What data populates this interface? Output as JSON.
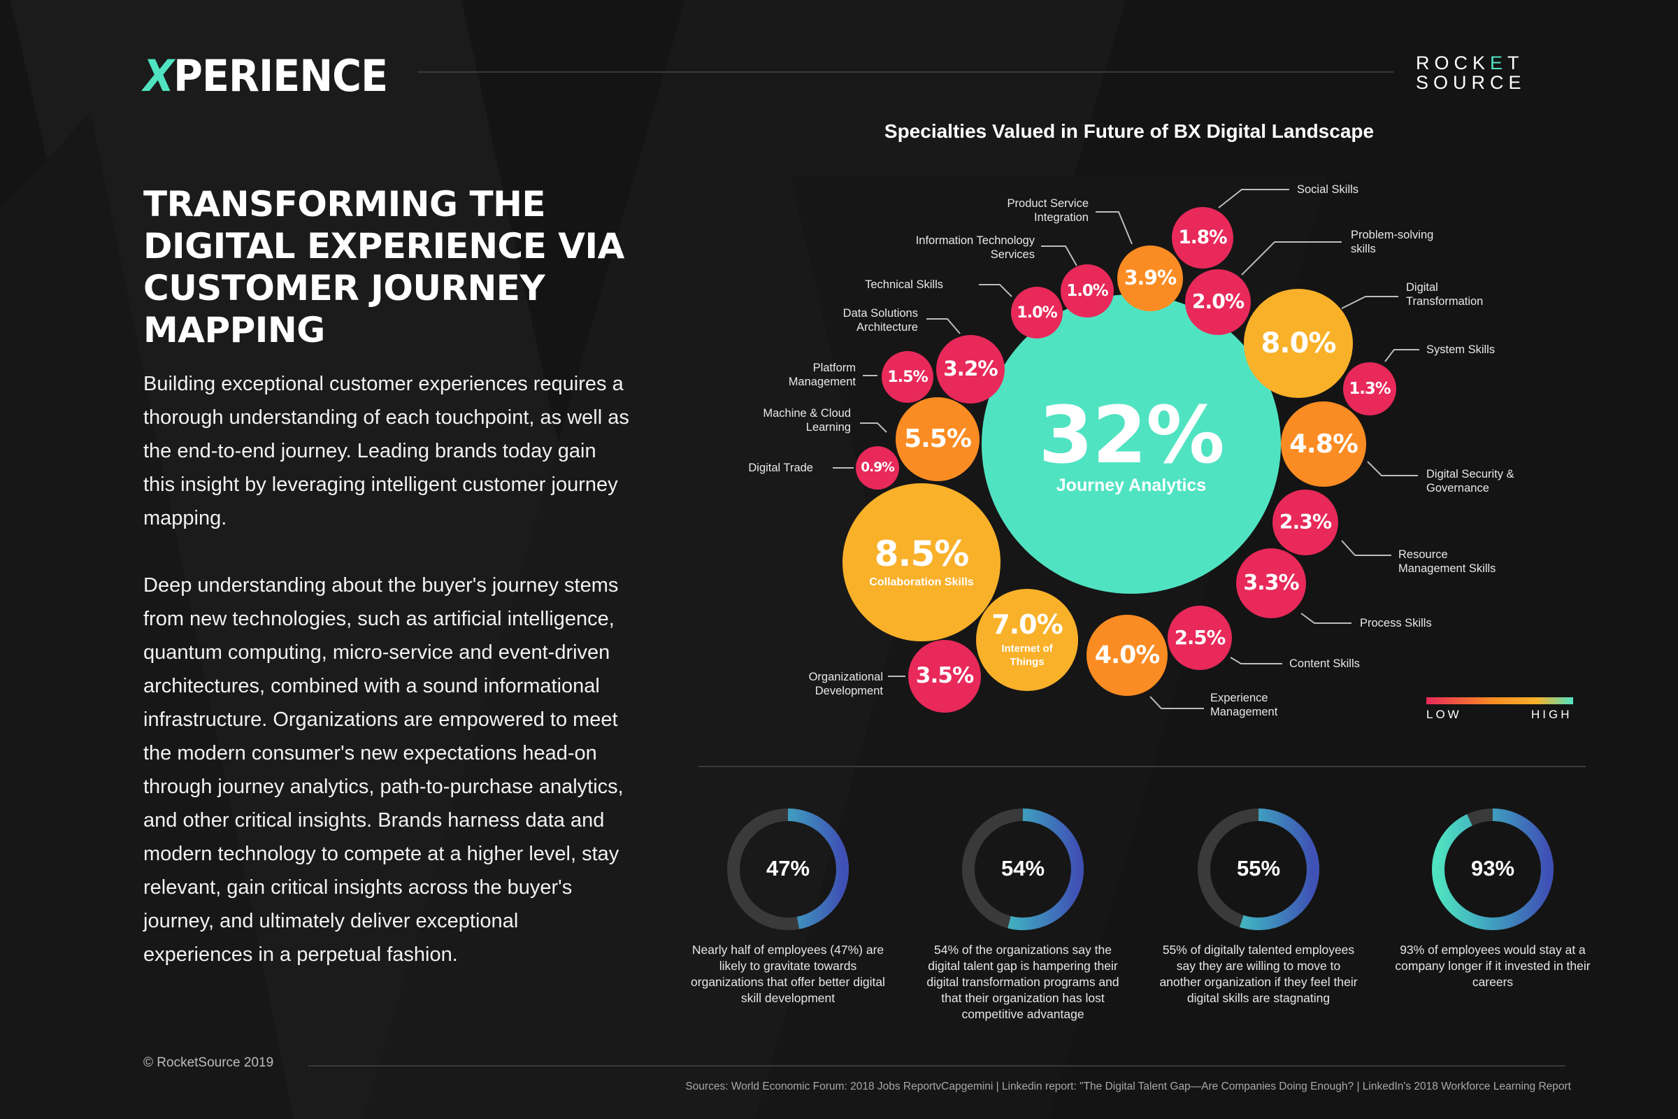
{
  "header": {
    "logo_x": "X",
    "logo_rest": "PERIENCE",
    "brand_line1_a": "ROCK",
    "brand_line1_e": "E",
    "brand_line1_b": "T",
    "brand_line2": "SOURCE"
  },
  "left": {
    "headline": "Transforming the Digital Experience via Customer Journey Mapping",
    "paragraph1": "Building exceptional customer experiences requires a thorough understanding of each touchpoint, as well as the end-to-end journey. Leading brands today gain this insight by leveraging intelligent customer journey mapping.",
    "paragraph2": "Deep understanding about the buyer's journey stems from new technologies, such as artificial intelligence, quantum computing, micro-service and event-driven architectures, combined with a sound informational infrastructure. Organizations are empowered to meet the modern consumer's new expectations head-on through journey analytics, path-to-purchase analytics, and other critical insights. Brands harness data and modern technology to compete at a higher level, stay relevant, gain critical insights across the buyer's journey, and ultimately deliver exceptional experiences in a perpetual fashion."
  },
  "colors": {
    "low": "#e8295a",
    "mid": "#fb8c23",
    "high": "#f9b12a",
    "top": "#50e3c2"
  },
  "chart_data": {
    "type": "bubble",
    "title": "Specialties Valued in Future of BX Digital Landscape",
    "legend": {
      "low": "LOW",
      "high": "HIGH"
    },
    "bubbles": [
      {
        "value": "32%",
        "label": "Journey Analytics",
        "level": "top",
        "inside": true
      },
      {
        "value": "8.5%",
        "label": "Collaboration Skills",
        "level": "high",
        "inside": true
      },
      {
        "value": "7.0%",
        "label": "Internet of Things",
        "level": "high",
        "inside": true
      },
      {
        "value": "4.0%",
        "label": "Experience Management",
        "level": "mid"
      },
      {
        "value": "2.5%",
        "label": "Content Skills",
        "level": "low"
      },
      {
        "value": "3.3%",
        "label": "Process Skills",
        "level": "low"
      },
      {
        "value": "2.3%",
        "label": "Resource Management Skills",
        "level": "low"
      },
      {
        "value": "4.8%",
        "label": "Digital Security & Governance",
        "level": "mid"
      },
      {
        "value": "1.3%",
        "label": "System Skills",
        "level": "low"
      },
      {
        "value": "8.0%",
        "label": "Digital Transformation",
        "level": "high"
      },
      {
        "value": "2.0%",
        "label": "Problem-solving skills",
        "level": "low"
      },
      {
        "value": "1.8%",
        "label": "Social Skills",
        "level": "low"
      },
      {
        "value": "3.9%",
        "label": "Product Service Integration",
        "level": "mid"
      },
      {
        "value": "1.0%",
        "label": "Information Technology Services",
        "level": "low"
      },
      {
        "value": "1.0%",
        "label": "Technical Skills",
        "level": "low"
      },
      {
        "value": "3.2%",
        "label": "Data Solutions Architecture",
        "level": "low"
      },
      {
        "value": "1.5%",
        "label": "Platform Management",
        "level": "low"
      },
      {
        "value": "5.5%",
        "label": "Machine & Cloud Learning",
        "level": "mid"
      },
      {
        "value": "0.9%",
        "label": "Digital Trade",
        "level": "low"
      },
      {
        "value": "3.5%",
        "label": "Organizational Development",
        "level": "low"
      }
    ]
  },
  "stats": [
    {
      "percent": 47,
      "label": "47%",
      "caption": "Nearly half of employees (47%) are likely to gravitate towards organizations that offer better digital skill development"
    },
    {
      "percent": 54,
      "label": "54%",
      "caption": "54% of the organizations say the digital talent gap is hampering their digital transformation programs and that their organization has lost competitive advantage"
    },
    {
      "percent": 55,
      "label": "55%",
      "caption": "55% of digitally talented employees say they are willing to move to another organization if they feel their digital skills are stagnating"
    },
    {
      "percent": 93,
      "label": "93%",
      "caption": "93% of employees would stay at a company longer if it invested in their careers"
    }
  ],
  "footer": {
    "copyright": "© RocketSource 2019",
    "sources": "Sources: World Economic Forum: 2018 Jobs ReportvCapgemini  | Linkedin report: \"The Digital Talent Gap—Are Companies Doing Enough? | LinkedIn's 2018 Workforce Learning Report"
  }
}
